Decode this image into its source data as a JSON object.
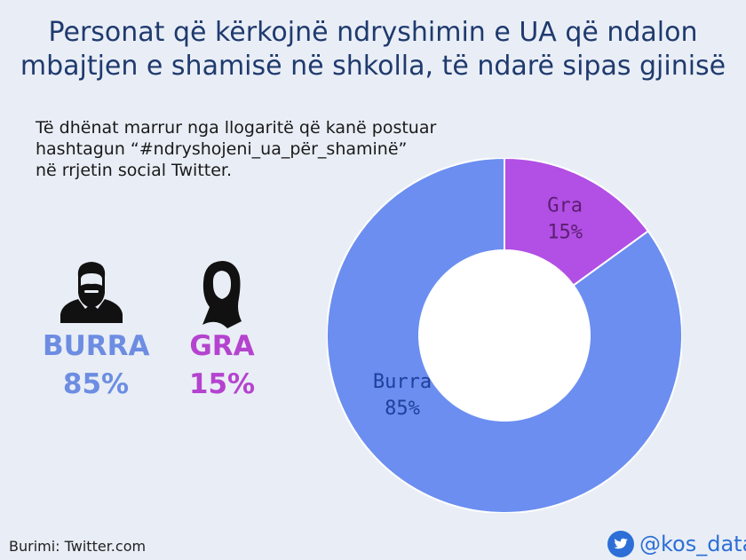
{
  "header": {
    "title_line1": "Personat që kërkojnë ndryshimin e UA që ndalon",
    "title_line2": "mbajtjen e shamisë në shkolla, të ndarë sipas gjinisë"
  },
  "subtitle": {
    "line1": "Të dhënat marrur nga llogaritë që kanë postuar",
    "line2": "hashtagun “#ndryshojeni_ua_për_shaminë”",
    "line3": "në rrjetin social Twitter."
  },
  "stats": {
    "men_label": "BURRA",
    "men_value": "85%",
    "women_label": "GRA",
    "women_value": "15%"
  },
  "icons": {
    "men": "man-bearded-icon",
    "women": "woman-hijab-icon",
    "social": "twitter-bird-icon"
  },
  "footer": {
    "source": "Burimi: Twitter.com",
    "handle": "@kos_data"
  },
  "colors": {
    "men": "#6b8ef0",
    "women": "#b24fe4",
    "men_text": "#6d8de2",
    "women_text": "#b543cf",
    "title": "#1f3a6e"
  },
  "chart_data": {
    "type": "pie",
    "donut": true,
    "categories": [
      "Gra",
      "Burra"
    ],
    "values": [
      15,
      85
    ],
    "labels": [
      "15%",
      "85%"
    ],
    "colors": [
      "#b24fe4",
      "#6b8ef0"
    ],
    "label_colors": [
      "#5a1f72",
      "#213f9a"
    ],
    "start_angle_deg": 0,
    "direction": "clockwise"
  }
}
